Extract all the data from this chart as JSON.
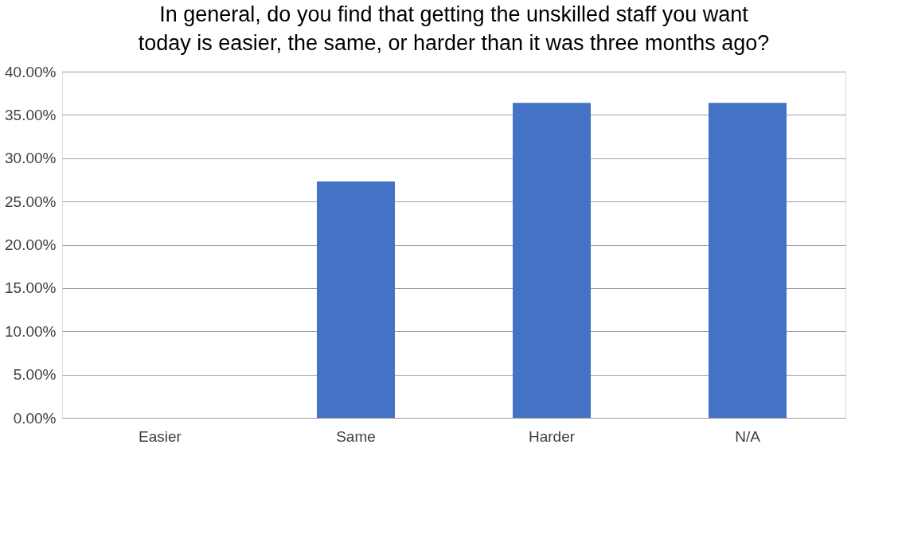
{
  "chart_data": {
    "type": "bar",
    "title": "In general, do you find that getting the unskilled staff you want today is easier, the same, or harder than it was three months ago?",
    "categories": [
      "Easier",
      "Same",
      "Harder",
      "N/A"
    ],
    "values": [
      0,
      27.3,
      36.4,
      36.4
    ],
    "color": "#4472c4",
    "ylim": [
      0,
      40
    ],
    "yticks": [
      {
        "value": 0,
        "label": "0.00%"
      },
      {
        "value": 5,
        "label": "5.00%"
      },
      {
        "value": 10,
        "label": "10.00%"
      },
      {
        "value": 15,
        "label": "15.00%"
      },
      {
        "value": 20,
        "label": "20.00%"
      },
      {
        "value": 25,
        "label": "25.00%"
      },
      {
        "value": 30,
        "label": "30.00%"
      },
      {
        "value": 35,
        "label": "35.00%"
      },
      {
        "value": 40,
        "label": "40.00%"
      }
    ],
    "grid": "y"
  }
}
